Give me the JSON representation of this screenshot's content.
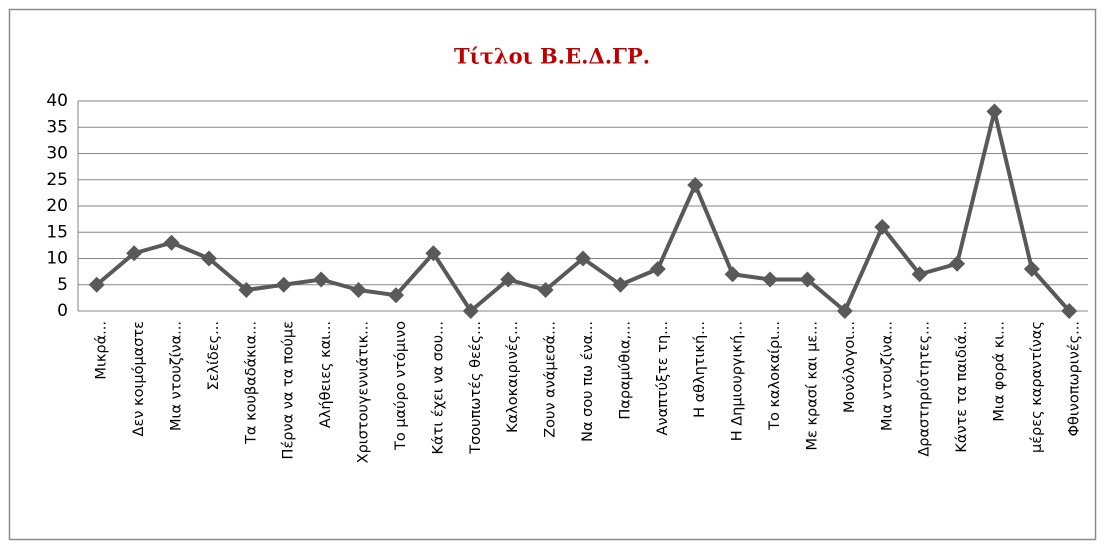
{
  "chart_data": {
    "type": "line",
    "title": "Τίτλοι Β.Ε.Δ.ΓΡ.",
    "categories": [
      "Μικρά...",
      "Δεν κοιμόμαστε",
      "Μια ντουζίνα...",
      "Σελίδες...",
      "Τα κουβαδάκια...",
      "Πέρνα να τα πούμε",
      "Αλήθειες και...",
      "Χριστουγεννιάτικ...",
      "Το μαύρο ντόμινο",
      "Κάτι έχει να σου...",
      "Τσουπωτές θεές...",
      "Καλοκαιρινές...",
      "Ζουν ανάμεσά...",
      "Να σου πω ένα...",
      "Παραμύθια,...",
      "Αναπτύξτε τη...",
      "Η αθλητική...",
      "Η Δημιουργική...",
      "Το καλοκαίρι...",
      "Με κρασί και με...",
      "Μονόλογοι...",
      "Μια ντουζίνα...",
      "Δραστηριότητες...",
      "Κάντε τα παιδιά...",
      "Μια φορά κι...",
      "μέρες καραντίνας",
      "Φθινοπωρινές..."
    ],
    "values": [
      5,
      11,
      13,
      10,
      4,
      5,
      6,
      4,
      3,
      11,
      0,
      6,
      4,
      10,
      5,
      8,
      24,
      7,
      6,
      6,
      0,
      16,
      7,
      9,
      38,
      8,
      0
    ],
    "color": "#595959",
    "ylim": [
      0,
      40
    ],
    "yticks": [
      0,
      5,
      10,
      15,
      20,
      25,
      30,
      35,
      40
    ],
    "grid": true
  }
}
